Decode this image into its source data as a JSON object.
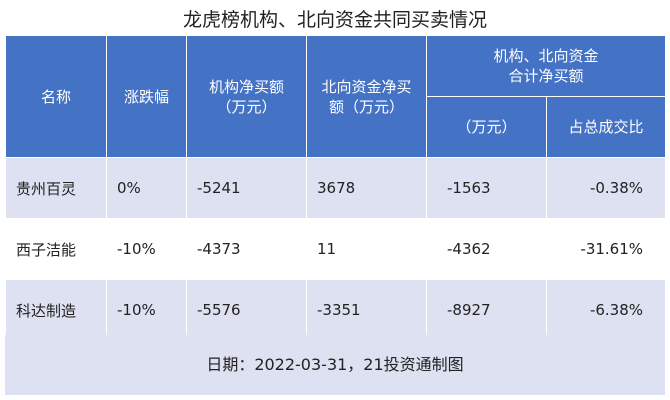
{
  "title": "龙虎榜机构、北向资金共同买卖情况",
  "headers": {
    "name": "名称",
    "change": "涨跌幅",
    "inst_net_line1": "机构净买额",
    "inst_net_line2": "（万元）",
    "north_net_line1": "北向资金净买",
    "north_net_line2": "额（万元）",
    "combined_line1": "机构、北向资金",
    "combined_line2": "合计净买额",
    "combined_unit": "（万元）",
    "ratio": "占总成交比"
  },
  "rows": [
    {
      "name": "贵州百灵",
      "change": "0%",
      "inst": "-5241",
      "north": "3678",
      "combined": "-1563",
      "ratio": "-0.38%"
    },
    {
      "name": "西子洁能",
      "change": "-10%",
      "inst": "-4373",
      "north": "11",
      "combined": "-4362",
      "ratio": "-31.61%"
    },
    {
      "name": "科达制造",
      "change": "-10%",
      "inst": "-5576",
      "north": "-3351",
      "combined": "-8927",
      "ratio": "-6.38%"
    }
  ],
  "footer": "日期：2022-03-31，21投资通制图",
  "colors": {
    "header_bg": "#4472c4",
    "band_bg": "#dde1f1"
  }
}
